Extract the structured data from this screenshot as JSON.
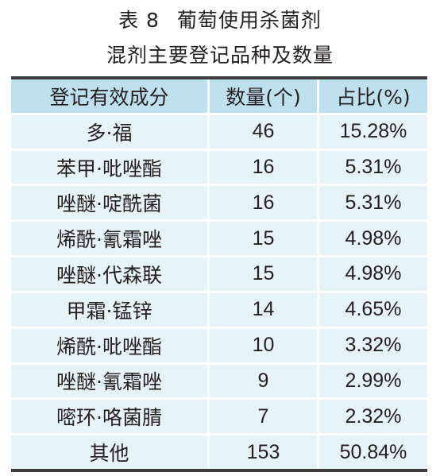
{
  "title": {
    "table_number": "表 8",
    "line1": "葡萄使用杀菌剂",
    "line2": "混剂主要登记品种及数量"
  },
  "table": {
    "headers": [
      "登记有效成分",
      "数量(个)",
      "占比(%)"
    ],
    "rows": [
      [
        "多·福",
        "46",
        "15.28%"
      ],
      [
        "苯甲·吡唑酯",
        "16",
        "5.31%"
      ],
      [
        "唑醚·啶酰菌",
        "16",
        "5.31%"
      ],
      [
        "烯酰·氰霜唑",
        "15",
        "4.98%"
      ],
      [
        "唑醚·代森联",
        "15",
        "4.98%"
      ],
      [
        "甲霜·锰锌",
        "14",
        "4.65%"
      ],
      [
        "烯酰·吡唑酯",
        "10",
        "3.32%"
      ],
      [
        "唑醚·氰霜唑",
        "9",
        "2.99%"
      ],
      [
        "嘧环·咯菌腈",
        "7",
        "2.32%"
      ],
      [
        "其他",
        "153",
        "50.84%"
      ]
    ]
  },
  "colors": {
    "header_bg": "#bfe0ee",
    "body_bg": "#e6f3f8",
    "rule": "#3d3d3d",
    "text": "#231f20"
  }
}
